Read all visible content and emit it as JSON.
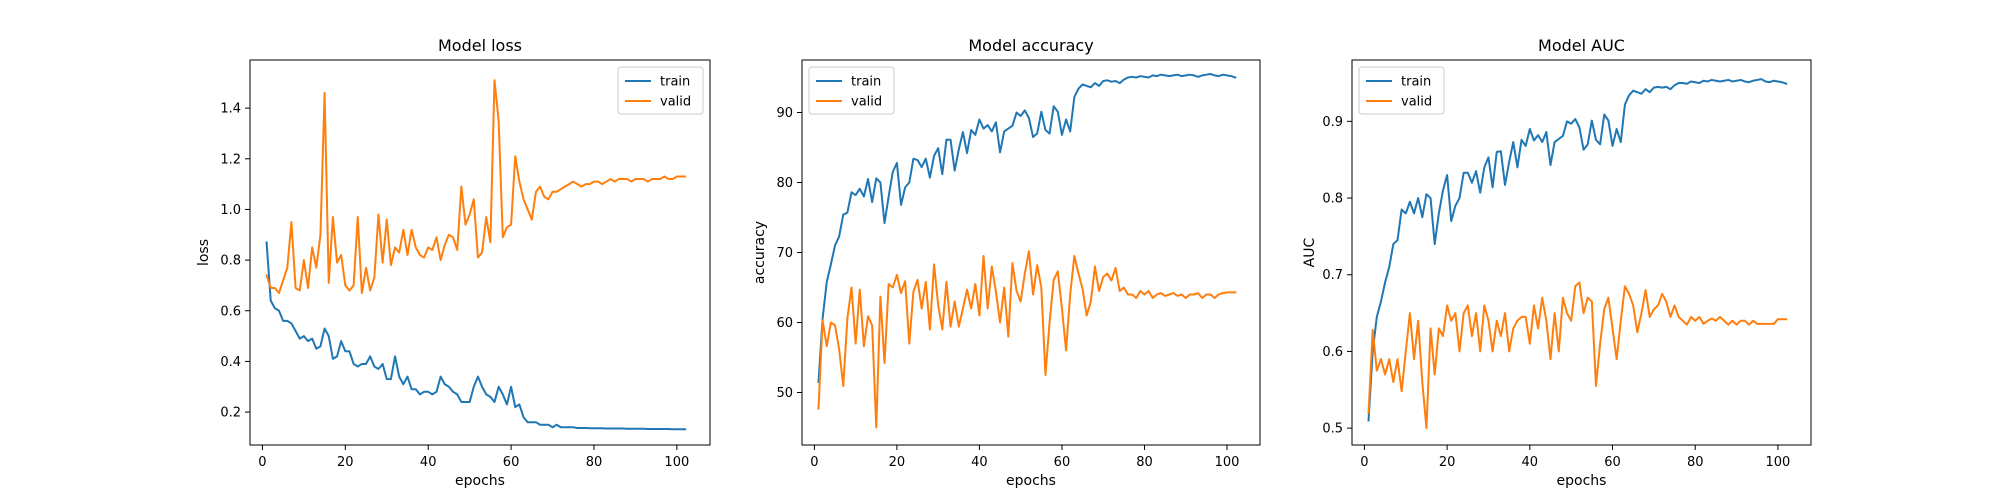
{
  "chart_data": [
    {
      "type": "line",
      "title": "Model loss",
      "xlabel": "epochs",
      "ylabel": "loss",
      "xlim": [
        -3,
        108
      ],
      "ylim": [
        0.07,
        1.59
      ],
      "xticks": [
        0,
        20,
        40,
        60,
        80,
        100
      ],
      "xtick_labels": [
        "0",
        "20",
        "40",
        "60",
        "80",
        "100"
      ],
      "yticks": [
        0.2,
        0.4,
        0.6,
        0.8,
        1.0,
        1.2,
        1.4
      ],
      "ytick_labels": [
        "0.2",
        "0.4",
        "0.6",
        "0.8",
        "1.0",
        "1.2",
        "1.4"
      ],
      "legend_position": "top-right",
      "x_start": 1,
      "series": [
        {
          "name": "train",
          "color": "#1f77b4",
          "values": [
            0.87,
            0.64,
            0.61,
            0.6,
            0.56,
            0.56,
            0.55,
            0.52,
            0.49,
            0.5,
            0.48,
            0.49,
            0.45,
            0.46,
            0.53,
            0.5,
            0.41,
            0.42,
            0.48,
            0.44,
            0.44,
            0.39,
            0.38,
            0.39,
            0.39,
            0.42,
            0.38,
            0.37,
            0.39,
            0.33,
            0.33,
            0.42,
            0.34,
            0.31,
            0.34,
            0.29,
            0.29,
            0.27,
            0.28,
            0.28,
            0.27,
            0.28,
            0.34,
            0.31,
            0.3,
            0.28,
            0.27,
            0.24,
            0.24,
            0.24,
            0.3,
            0.34,
            0.3,
            0.27,
            0.26,
            0.24,
            0.3,
            0.27,
            0.23,
            0.3,
            0.22,
            0.23,
            0.18,
            0.16,
            0.16,
            0.16,
            0.15,
            0.15,
            0.15,
            0.14,
            0.15,
            0.14,
            0.14,
            0.14,
            0.14,
            0.137,
            0.137,
            0.137,
            0.136,
            0.136,
            0.136,
            0.136,
            0.135,
            0.135,
            0.135,
            0.135,
            0.135,
            0.134,
            0.134,
            0.134,
            0.134,
            0.134,
            0.133,
            0.133,
            0.133,
            0.133,
            0.133,
            0.133,
            0.132,
            0.132,
            0.132,
            0.132
          ]
        },
        {
          "name": "valid",
          "color": "#ff7f0e",
          "values": [
            0.74,
            0.69,
            0.69,
            0.67,
            0.72,
            0.77,
            0.95,
            0.69,
            0.68,
            0.8,
            0.69,
            0.85,
            0.77,
            0.9,
            1.46,
            0.71,
            0.97,
            0.79,
            0.82,
            0.7,
            0.68,
            0.7,
            0.97,
            0.67,
            0.77,
            0.68,
            0.73,
            0.98,
            0.79,
            0.96,
            0.78,
            0.85,
            0.83,
            0.92,
            0.82,
            0.92,
            0.85,
            0.82,
            0.81,
            0.85,
            0.84,
            0.89,
            0.8,
            0.86,
            0.9,
            0.89,
            0.84,
            1.09,
            0.94,
            0.98,
            1.04,
            0.81,
            0.83,
            0.97,
            0.87,
            1.51,
            1.35,
            0.89,
            0.93,
            0.94,
            1.21,
            1.11,
            1.04,
            1.0,
            0.96,
            1.07,
            1.09,
            1.05,
            1.04,
            1.07,
            1.07,
            1.08,
            1.09,
            1.1,
            1.11,
            1.1,
            1.09,
            1.1,
            1.1,
            1.11,
            1.11,
            1.1,
            1.11,
            1.12,
            1.11,
            1.12,
            1.12,
            1.12,
            1.11,
            1.12,
            1.12,
            1.12,
            1.11,
            1.12,
            1.12,
            1.12,
            1.13,
            1.12,
            1.12,
            1.13,
            1.13,
            1.13
          ]
        }
      ]
    },
    {
      "type": "line",
      "title": "Model accuracy",
      "xlabel": "epochs",
      "ylabel": "accuracy",
      "xlim": [
        -3,
        108
      ],
      "ylim": [
        42.5,
        97.5
      ],
      "xticks": [
        0,
        20,
        40,
        60,
        80,
        100
      ],
      "xtick_labels": [
        "0",
        "20",
        "40",
        "60",
        "80",
        "100"
      ],
      "yticks": [
        50,
        60,
        70,
        80,
        90
      ],
      "ytick_labels": [
        "50",
        "60",
        "70",
        "80",
        "90"
      ],
      "legend_position": "top-left",
      "x_start": 1,
      "series": [
        {
          "name": "train",
          "color": "#1f77b4",
          "values": [
            51.5,
            60.6,
            65.8,
            68.3,
            71.0,
            72.3,
            75.4,
            75.7,
            78.6,
            78.2,
            79.1,
            78.0,
            80.5,
            77.2,
            80.6,
            80.0,
            74.2,
            78.0,
            81.5,
            82.8,
            76.8,
            79.3,
            80.0,
            83.4,
            83.2,
            82.2,
            83.4,
            80.7,
            83.8,
            84.9,
            81.2,
            86.1,
            86.1,
            81.7,
            84.7,
            87.2,
            84.2,
            87.5,
            86.8,
            89.0,
            87.7,
            88.2,
            87.3,
            88.6,
            84.3,
            87.3,
            87.7,
            88.1,
            90.0,
            89.5,
            90.3,
            89.2,
            86.5,
            87.0,
            90.1,
            87.5,
            87.0,
            90.9,
            90.1,
            86.8,
            89.0,
            87.3,
            92.2,
            93.4,
            94.0,
            93.8,
            93.6,
            94.2,
            93.8,
            94.5,
            94.6,
            94.4,
            94.5,
            94.2,
            94.7,
            95.0,
            95.1,
            95.0,
            95.2,
            95.1,
            95.0,
            95.3,
            95.2,
            95.4,
            95.3,
            95.2,
            95.3,
            95.4,
            95.2,
            95.3,
            95.4,
            95.3,
            95.1,
            95.3,
            95.4,
            95.5,
            95.3,
            95.2,
            95.4,
            95.3,
            95.2,
            95.0
          ]
        },
        {
          "name": "valid",
          "color": "#ff7f0e",
          "values": [
            47.7,
            60.3,
            56.6,
            60.0,
            59.6,
            56.2,
            50.9,
            60.6,
            65.0,
            57.0,
            64.7,
            56.6,
            60.9,
            59.6,
            45.0,
            63.7,
            54.2,
            65.5,
            65.0,
            66.8,
            64.2,
            65.9,
            57.0,
            64.4,
            66.1,
            62.0,
            65.8,
            59.0,
            68.3,
            62.5,
            59.0,
            65.8,
            59.4,
            63.0,
            59.4,
            62.0,
            64.7,
            62.0,
            65.5,
            61.0,
            69.5,
            62.0,
            68.0,
            64.4,
            60.0,
            65.0,
            58.0,
            68.5,
            64.5,
            63.0,
            67.0,
            70.2,
            64.0,
            68.2,
            65.0,
            52.5,
            60.0,
            66.1,
            67.3,
            62.0,
            56.0,
            64.0,
            69.5,
            67.0,
            64.8,
            61.0,
            63.0,
            68.0,
            64.5,
            66.5,
            67.0,
            66.0,
            67.8,
            64.5,
            65.0,
            64.0,
            64.0,
            63.5,
            64.5,
            64.0,
            64.5,
            63.5,
            64.0,
            64.2,
            63.8,
            64.0,
            64.2,
            63.8,
            64.0,
            63.5,
            64.0,
            64.0,
            64.2,
            63.5,
            64.0,
            64.0,
            63.5,
            64.0,
            64.2,
            64.3,
            64.3,
            64.3
          ]
        }
      ]
    },
    {
      "type": "line",
      "title": "Model AUC",
      "xlabel": "epochs",
      "ylabel": "AUC",
      "xlim": [
        -3,
        108
      ],
      "ylim": [
        0.478,
        0.98
      ],
      "xticks": [
        0,
        20,
        40,
        60,
        80,
        100
      ],
      "xtick_labels": [
        "0",
        "20",
        "40",
        "60",
        "80",
        "100"
      ],
      "yticks": [
        0.5,
        0.6,
        0.7,
        0.8,
        0.9
      ],
      "ytick_labels": [
        "0.5",
        "0.6",
        "0.7",
        "0.8",
        "0.9"
      ],
      "legend_position": "top-left",
      "x_start": 1,
      "series": [
        {
          "name": "train",
          "color": "#1f77b4",
          "values": [
            0.51,
            0.6,
            0.645,
            0.665,
            0.69,
            0.71,
            0.74,
            0.745,
            0.785,
            0.78,
            0.795,
            0.78,
            0.8,
            0.775,
            0.805,
            0.8,
            0.74,
            0.78,
            0.81,
            0.83,
            0.77,
            0.79,
            0.8,
            0.833,
            0.833,
            0.82,
            0.835,
            0.807,
            0.84,
            0.853,
            0.814,
            0.86,
            0.861,
            0.817,
            0.847,
            0.873,
            0.84,
            0.876,
            0.868,
            0.89,
            0.875,
            0.882,
            0.873,
            0.886,
            0.843,
            0.873,
            0.877,
            0.881,
            0.9,
            0.897,
            0.903,
            0.892,
            0.863,
            0.87,
            0.901,
            0.876,
            0.87,
            0.909,
            0.901,
            0.868,
            0.89,
            0.873,
            0.922,
            0.934,
            0.94,
            0.938,
            0.936,
            0.942,
            0.938,
            0.944,
            0.945,
            0.944,
            0.945,
            0.942,
            0.947,
            0.95,
            0.95,
            0.949,
            0.952,
            0.951,
            0.95,
            0.953,
            0.952,
            0.954,
            0.953,
            0.952,
            0.953,
            0.954,
            0.952,
            0.953,
            0.954,
            0.952,
            0.951,
            0.953,
            0.954,
            0.955,
            0.952,
            0.951,
            0.953,
            0.952,
            0.951,
            0.949
          ]
        },
        {
          "name": "valid",
          "color": "#ff7f0e",
          "values": [
            0.52,
            0.628,
            0.575,
            0.59,
            0.57,
            0.59,
            0.56,
            0.59,
            0.548,
            0.6,
            0.65,
            0.59,
            0.64,
            0.56,
            0.5,
            0.63,
            0.57,
            0.63,
            0.62,
            0.66,
            0.64,
            0.65,
            0.6,
            0.65,
            0.66,
            0.62,
            0.65,
            0.6,
            0.66,
            0.64,
            0.6,
            0.64,
            0.62,
            0.65,
            0.6,
            0.63,
            0.64,
            0.645,
            0.645,
            0.61,
            0.66,
            0.63,
            0.67,
            0.64,
            0.59,
            0.65,
            0.6,
            0.67,
            0.65,
            0.64,
            0.685,
            0.69,
            0.65,
            0.67,
            0.665,
            0.555,
            0.61,
            0.655,
            0.67,
            0.63,
            0.59,
            0.64,
            0.685,
            0.675,
            0.66,
            0.625,
            0.65,
            0.68,
            0.645,
            0.655,
            0.66,
            0.675,
            0.665,
            0.645,
            0.66,
            0.645,
            0.64,
            0.635,
            0.645,
            0.64,
            0.645,
            0.636,
            0.64,
            0.643,
            0.64,
            0.645,
            0.64,
            0.635,
            0.64,
            0.635,
            0.64,
            0.64,
            0.635,
            0.64,
            0.636,
            0.636,
            0.636,
            0.636,
            0.636,
            0.642,
            0.642,
            0.642
          ]
        }
      ]
    }
  ]
}
